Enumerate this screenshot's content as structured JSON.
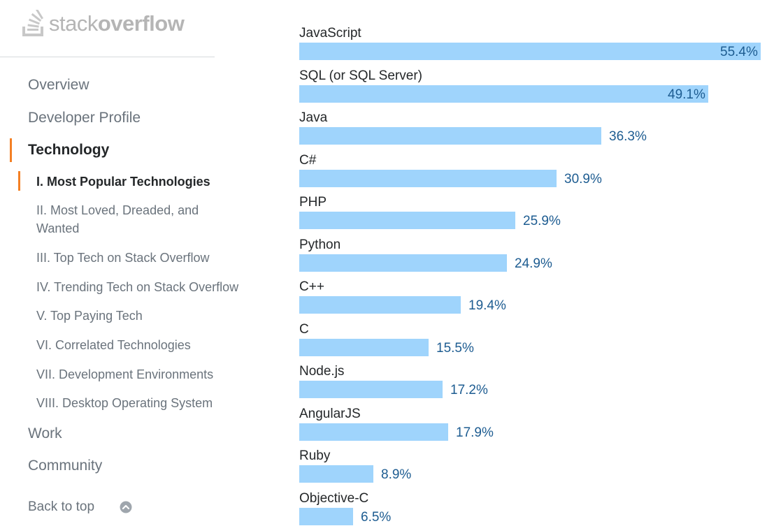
{
  "logo": {
    "text_light": "stack",
    "text_bold": "overflow"
  },
  "sidebar": {
    "sections": [
      {
        "label": "Overview"
      },
      {
        "label": "Developer Profile"
      },
      {
        "label": "Technology",
        "active": true
      },
      {
        "label": "Work"
      },
      {
        "label": "Community"
      }
    ],
    "subsections": [
      {
        "label": "I. Most Popular Technologies",
        "active": true
      },
      {
        "label": "II. Most Loved, Dreaded, and Wanted"
      },
      {
        "label": "III. Top Tech on Stack Overflow"
      },
      {
        "label": "IV. Trending Tech on Stack Overflow"
      },
      {
        "label": "V. Top Paying Tech"
      },
      {
        "label": "VI. Correlated Technologies"
      },
      {
        "label": "VII. Development Environments"
      },
      {
        "label": "VIII. Desktop Operating System"
      }
    ],
    "back_to_top": "Back to top"
  },
  "colors": {
    "bar": "#9fd4fc",
    "value_text": "#1d5c91",
    "accent": "#f48024"
  },
  "chart_data": {
    "type": "bar",
    "orientation": "horizontal",
    "categories": [
      "JavaScript",
      "SQL (or SQL Server)",
      "Java",
      "C#",
      "PHP",
      "Python",
      "C++",
      "C",
      "Node.js",
      "AngularJS",
      "Ruby",
      "Objective-C"
    ],
    "values": [
      55.4,
      49.1,
      36.3,
      30.9,
      25.9,
      24.9,
      19.4,
      15.5,
      17.2,
      17.9,
      8.9,
      6.5
    ],
    "value_labels": [
      "55.4%",
      "49.1%",
      "36.3%",
      "30.9%",
      "25.9%",
      "24.9%",
      "19.4%",
      "15.5%",
      "17.2%",
      "17.9%",
      "8.9%",
      "6.5%"
    ],
    "xlim": [
      0,
      55.4
    ],
    "grid": false,
    "legend": "none"
  }
}
